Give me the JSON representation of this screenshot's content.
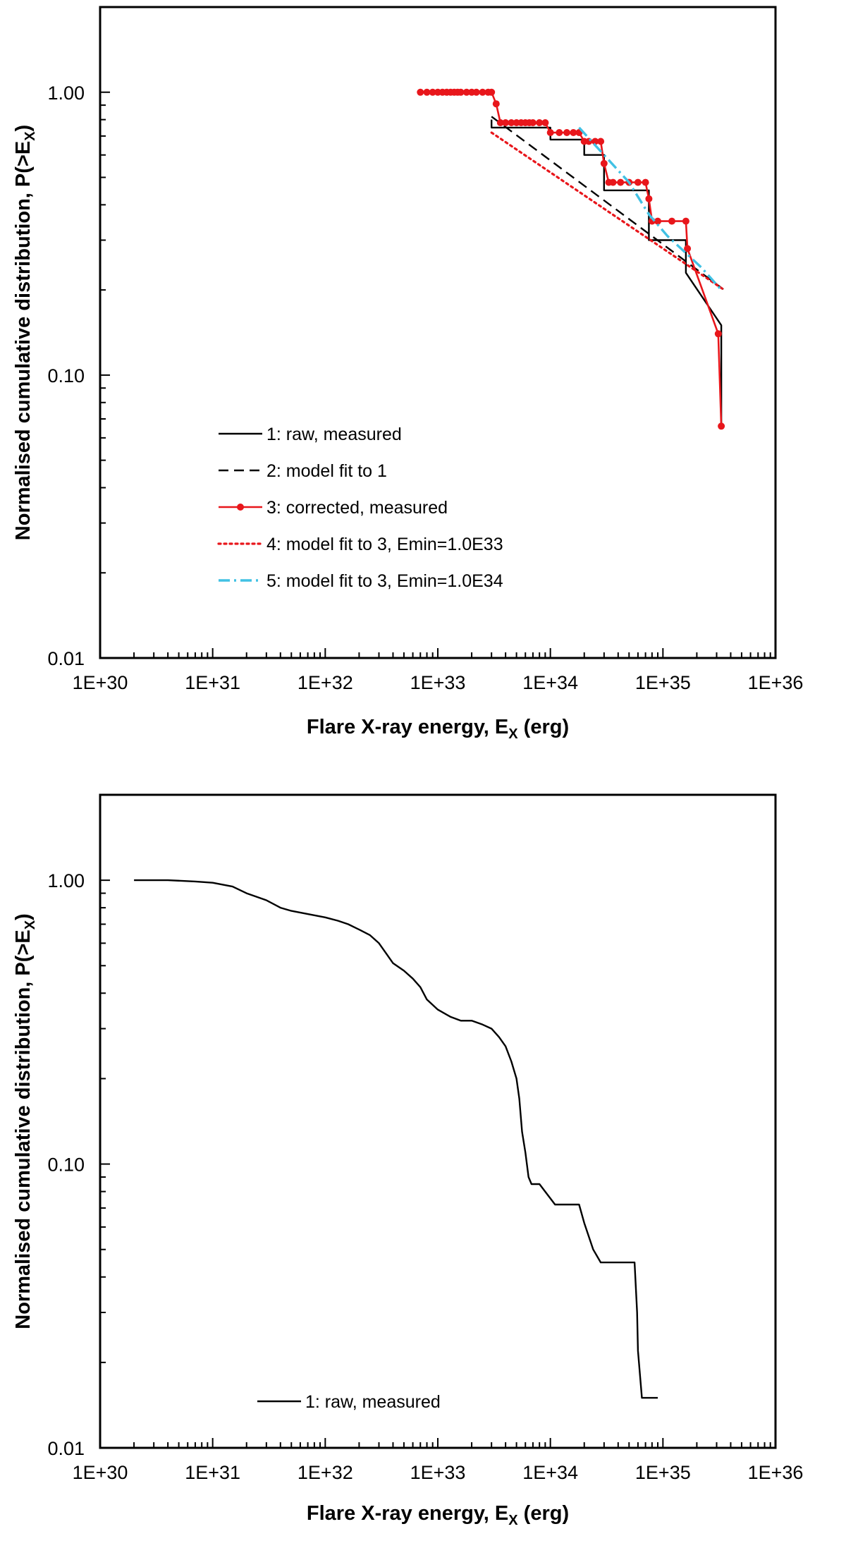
{
  "chart_data": [
    {
      "type": "line",
      "x_scale": "log",
      "y_scale": "log",
      "xlim": [
        1e+30,
        1e+36
      ],
      "ylim": [
        0.01,
        2.0
      ],
      "x_ticks": [
        "1E+30",
        "1E+31",
        "1E+32",
        "1E+33",
        "1E+34",
        "1E+35",
        "1E+36"
      ],
      "y_ticks": [
        "0.01",
        "0.10",
        "1.00"
      ],
      "xlabel": {
        "main": "Flare X-ray energy, E",
        "sub": "X",
        "tail": " (erg)"
      },
      "ylabel": {
        "main": "Normalised cumulative distribution, P(>E",
        "sub": "X",
        "tail": ")"
      },
      "grid": false,
      "legend_position": "lower-left",
      "series": [
        {
          "name": "1: raw, measured",
          "color": "#000000",
          "style": "solid",
          "x": [
            3e+33,
            3e+33,
            1e+34,
            1e+34,
            2e+34,
            2e+34,
            3e+34,
            3e+34,
            7.5e+34,
            7.5e+34,
            1.6e+35,
            1.6e+35,
            3.3e+35,
            3.3e+35
          ],
          "y": [
            0.8,
            0.75,
            0.75,
            0.68,
            0.68,
            0.6,
            0.6,
            0.45,
            0.45,
            0.3,
            0.3,
            0.23,
            0.15,
            0.066
          ]
        },
        {
          "name": "2: model fit to 1",
          "color": "#000000",
          "style": "dashed",
          "x": [
            3e+33,
            3.5e+35
          ],
          "y": [
            0.82,
            0.2
          ]
        },
        {
          "name": "3: corrected, measured",
          "color": "#e8161b",
          "style": "solid-markers",
          "x": [
            7e+32,
            8e+32,
            9e+32,
            1e+33,
            1.1e+33,
            1.2e+33,
            1.3e+33,
            1.4e+33,
            1.5e+33,
            1.6e+33,
            1.8e+33,
            2e+33,
            2.2e+33,
            2.5e+33,
            2.8e+33,
            3e+33,
            3.3e+33,
            3.6e+33,
            4e+33,
            4.5e+33,
            5e+33,
            5.5e+33,
            6e+33,
            6.5e+33,
            7e+33,
            8e+33,
            9e+33,
            1e+34,
            1.2e+34,
            1.4e+34,
            1.6e+34,
            1.8e+34,
            2e+34,
            2.2e+34,
            2.5e+34,
            2.8e+34,
            3e+34,
            3.3e+34,
            3.6e+34,
            4.2e+34,
            5e+34,
            6e+34,
            7e+34,
            7.5e+34,
            8e+34,
            9e+34,
            1.2e+35,
            1.6e+35,
            1.65e+35,
            3.1e+35,
            3.3e+35
          ],
          "y": [
            1.0,
            1.0,
            1.0,
            1.0,
            1.0,
            1.0,
            1.0,
            1.0,
            1.0,
            1.0,
            1.0,
            1.0,
            1.0,
            1.0,
            1.0,
            1.0,
            0.91,
            0.78,
            0.78,
            0.78,
            0.78,
            0.78,
            0.78,
            0.78,
            0.78,
            0.78,
            0.78,
            0.72,
            0.72,
            0.72,
            0.72,
            0.72,
            0.67,
            0.67,
            0.67,
            0.67,
            0.56,
            0.48,
            0.48,
            0.48,
            0.48,
            0.48,
            0.48,
            0.42,
            0.35,
            0.35,
            0.35,
            0.35,
            0.28,
            0.14,
            0.066
          ]
        },
        {
          "name": "4: model fit to 3, Emin=1.0E33",
          "color": "#e8161b",
          "style": "dotted",
          "x": [
            3e+33,
            3.5e+35
          ],
          "y": [
            0.72,
            0.2
          ]
        },
        {
          "name": "5: model fit to 3, Emin=1.0E34",
          "color": "#41c1e4",
          "style": "dashdot",
          "x": [
            1.8e+34,
            3e+34,
            5e+34,
            7.5e+34,
            1.1e+35,
            1.6e+35,
            2.2e+35,
            3.3e+35
          ],
          "y": [
            0.75,
            0.6,
            0.48,
            0.37,
            0.31,
            0.27,
            0.24,
            0.2
          ]
        }
      ]
    },
    {
      "type": "line",
      "x_scale": "log",
      "y_scale": "log",
      "xlim": [
        1e+30,
        1e+36
      ],
      "ylim": [
        0.01,
        2.0
      ],
      "x_ticks": [
        "1E+30",
        "1E+31",
        "1E+32",
        "1E+33",
        "1E+34",
        "1E+35",
        "1E+36"
      ],
      "y_ticks": [
        "0.01",
        "0.10",
        "1.00"
      ],
      "xlabel": {
        "main": "Flare X-ray energy, E",
        "sub": "X",
        "tail": " (erg)"
      },
      "ylabel": {
        "main": "Normalised cumulative distribution, P(>E",
        "sub": "X",
        "tail": ")"
      },
      "grid": false,
      "legend_position": "lower-left",
      "series": [
        {
          "name": "1: raw, measured",
          "color": "#000000",
          "style": "solid",
          "x": [
            2e+30,
            4e+30,
            7e+30,
            1e+31,
            1.5e+31,
            2e+31,
            3e+31,
            4e+31,
            5e+31,
            7e+31,
            1e+32,
            1.3e+32,
            1.6e+32,
            2e+32,
            2.5e+32,
            3e+32,
            3.5e+32,
            4e+32,
            5e+32,
            6e+32,
            7e+32,
            8e+32,
            1e+33,
            1.3e+33,
            1.6e+33,
            2e+33,
            2.5e+33,
            3e+33,
            3.5e+33,
            4e+33,
            4.5e+33,
            5e+33,
            5.3e+33,
            5.6e+33,
            6e+33,
            6.4e+33,
            6.8e+33,
            7.2e+33,
            7.6e+33,
            8e+33,
            1.1e+34,
            1.2e+34,
            1.8e+34,
            2e+34,
            2.4e+34,
            2.8e+34,
            3e+34,
            5.6e+34,
            5.9e+34,
            6e+34,
            6.5e+34,
            9e+34
          ],
          "y": [
            1.0,
            1.0,
            0.99,
            0.98,
            0.95,
            0.9,
            0.85,
            0.8,
            0.78,
            0.76,
            0.74,
            0.72,
            0.7,
            0.67,
            0.64,
            0.6,
            0.55,
            0.51,
            0.48,
            0.45,
            0.42,
            0.38,
            0.35,
            0.33,
            0.32,
            0.32,
            0.31,
            0.3,
            0.28,
            0.26,
            0.23,
            0.2,
            0.17,
            0.13,
            0.11,
            0.09,
            0.085,
            0.085,
            0.085,
            0.085,
            0.072,
            0.072,
            0.072,
            0.062,
            0.05,
            0.045,
            0.045,
            0.045,
            0.03,
            0.022,
            0.015,
            0.015
          ]
        }
      ]
    }
  ]
}
